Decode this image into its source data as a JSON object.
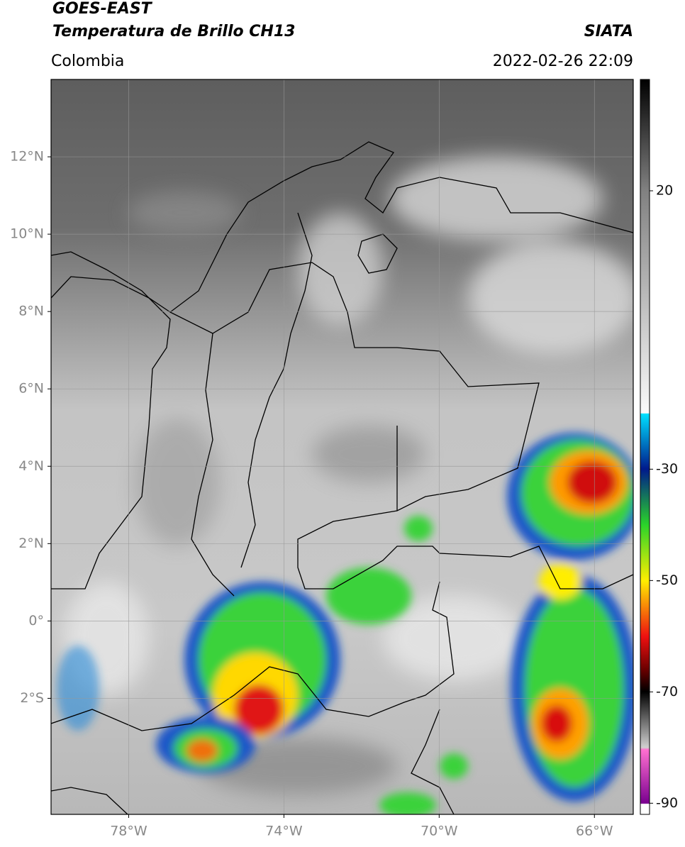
{
  "header": {
    "title": "GOES-EAST",
    "subtitle": "Temperatura de Brillo CH13",
    "source": "SIATA",
    "region": "Colombia",
    "datetime": "2022-02-26 22:09"
  },
  "map": {
    "xlim": [
      -80,
      -65
    ],
    "ylim": [
      -5,
      14
    ],
    "xticks": [
      {
        "value": -78,
        "label": "78°W"
      },
      {
        "value": -74,
        "label": "74°W"
      },
      {
        "value": -70,
        "label": "70°W"
      },
      {
        "value": -66,
        "label": "66°W"
      }
    ],
    "yticks": [
      {
        "value": 12,
        "label": "12°N"
      },
      {
        "value": 10,
        "label": "10°N"
      },
      {
        "value": 8,
        "label": "8°N"
      },
      {
        "value": 6,
        "label": "6°N"
      },
      {
        "value": 4,
        "label": "4°N"
      },
      {
        "value": 2,
        "label": "2°N"
      },
      {
        "value": 0,
        "label": "0°"
      },
      {
        "value": -2,
        "label": "2°S"
      }
    ],
    "grid": true
  },
  "colorbar": {
    "lim": [
      -92,
      40
    ],
    "ticks": [
      20,
      -30,
      -50,
      -70,
      -90
    ]
  }
}
